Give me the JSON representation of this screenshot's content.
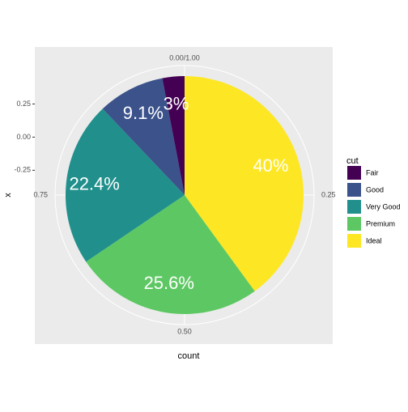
{
  "chart_data": {
    "type": "pie",
    "categories": [
      "Fair",
      "Good",
      "Very Good",
      "Premium",
      "Ideal"
    ],
    "values": [
      3,
      9.1,
      22.4,
      25.6,
      40
    ],
    "value_labels": [
      "3%",
      "9.1%",
      "22.4%",
      "25.6%",
      "40%"
    ],
    "colors": [
      "#440154",
      "#3B528B",
      "#21908C",
      "#5DC863",
      "#FDE725"
    ],
    "theta_ticks": [
      {
        "value": 0,
        "label": "0.00/1.00"
      },
      0.25,
      {
        "value": 0.5,
        "label": "0.50"
      },
      0.75
    ],
    "ylim": [
      -1.56,
      0.68
    ],
    "yticks": [
      0.25,
      {
        "value": 0,
        "label": "0.00"
      },
      -0.25
    ],
    "x_label": "count",
    "y_label": "x",
    "legend_title": "cut",
    "legend_position": "right"
  }
}
